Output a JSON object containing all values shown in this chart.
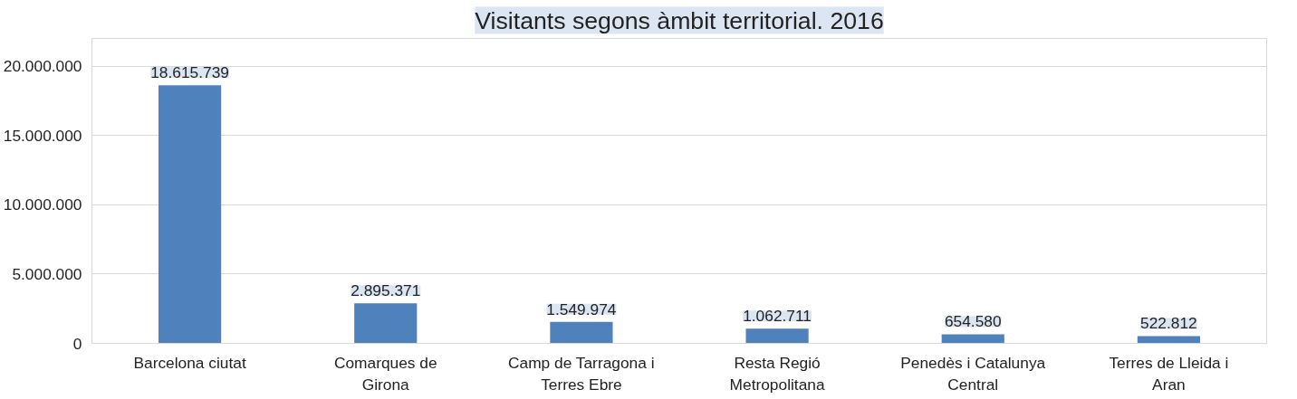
{
  "chart_data": {
    "type": "bar",
    "title": "Visitants segons àmbit territorial. 2016",
    "categories": [
      "Barcelona ciutat",
      "Comarques de Girona",
      "Camp de Tarragona i Terres Ebre",
      "Resta Regió Metropolitana",
      "Penedès i Catalunya Central",
      "Terres de Lleida i Aran"
    ],
    "values": [
      18615739,
      2895371,
      1549974,
      1062711,
      654580,
      522812
    ],
    "value_labels": [
      "18.615.739",
      "2.895.371",
      "1.549.974",
      "1.062.711",
      "654.580",
      "522.812"
    ],
    "color": "#4f81bd",
    "ylim": [
      0,
      22000000
    ],
    "yticks": [
      {
        "value": 0,
        "label": "0"
      },
      {
        "value": 5000000,
        "label": "5.000.000"
      },
      {
        "value": 10000000,
        "label": "10.000.000"
      },
      {
        "value": 15000000,
        "label": "15.000.000"
      },
      {
        "value": 20000000,
        "label": "20.000.000"
      }
    ],
    "grid": "y"
  }
}
